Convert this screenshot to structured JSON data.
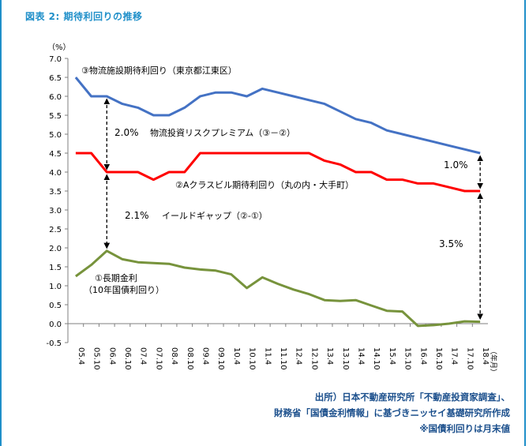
{
  "figure_title": "図表 2: 期待利回りの推移",
  "source_lines": [
    "出所）日本不動産研究所「不動産投資家調査」、",
    "財務省「国債金利情報」に基づきニッセイ基礎研究所作成",
    "※国債利回りは月末値"
  ],
  "colors": {
    "series1": "#4472c4",
    "series2": "#ff0000",
    "series3": "#77933c",
    "frame": "#1f8fc9",
    "source_text": "#1b4f8c"
  },
  "chart_data": {
    "type": "line",
    "y_unit_label": "（%）",
    "x_unit_label": "（年月）",
    "ylim": [
      -0.5,
      7.0
    ],
    "yticks": [
      "7.0",
      "6.5",
      "6.0",
      "5.5",
      "5.0",
      "4.5",
      "4.0",
      "3.5",
      "3.0",
      "2.5",
      "2.0",
      "1.5",
      "1.0",
      "0.5",
      "0.0",
      "-0.5"
    ],
    "grid": false,
    "x_tick_labels": [
      "05.4",
      "05.10",
      "06.4",
      "06.10",
      "07.4",
      "07.10",
      "08.4",
      "08.10",
      "09.4",
      "09.10",
      "10.4",
      "10.10",
      "11.4",
      "11.10",
      "12.4",
      "12.10",
      "13.4",
      "13.10",
      "14.4",
      "14.10",
      "15.4",
      "15.10",
      "16.4",
      "16.10",
      "17.4",
      "17.10",
      "18.4"
    ],
    "series": [
      {
        "name": "③物流施設期待利回り（東京都江東区）",
        "color": "#4472c4",
        "values": [
          6.5,
          6.0,
          6.0,
          5.8,
          5.7,
          5.5,
          5.5,
          5.7,
          6.0,
          6.1,
          6.1,
          6.0,
          6.2,
          6.1,
          6.0,
          5.9,
          5.8,
          5.6,
          5.4,
          5.3,
          5.1,
          5.0,
          4.9,
          4.8,
          4.7,
          4.6,
          4.5
        ]
      },
      {
        "name": "②Aクラスビル期待利回り（丸の内・大手町）",
        "color": "#ff0000",
        "values": [
          4.5,
          4.5,
          4.0,
          4.0,
          4.0,
          3.8,
          4.0,
          4.0,
          4.5,
          4.5,
          4.5,
          4.5,
          4.5,
          4.5,
          4.5,
          4.5,
          4.3,
          4.2,
          4.0,
          4.0,
          3.8,
          3.8,
          3.7,
          3.7,
          3.6,
          3.5,
          3.5
        ]
      },
      {
        "name": "①長期金利（10年国債利回り）",
        "color": "#77933c",
        "values": [
          1.25,
          1.55,
          1.92,
          1.7,
          1.62,
          1.6,
          1.58,
          1.48,
          1.43,
          1.4,
          1.3,
          0.94,
          1.22,
          1.05,
          0.9,
          0.78,
          0.62,
          0.6,
          0.62,
          0.48,
          0.34,
          0.32,
          -0.06,
          -0.04,
          0.0,
          0.06,
          0.05
        ]
      }
    ],
    "annotations": [
      {
        "text": "2.0%",
        "label": "物流投資リスクプレミアム（③－②）"
      },
      {
        "text": "2.1%",
        "label": "イールドギャップ（②-①）"
      },
      {
        "text": "1.0%"
      },
      {
        "text": "3.5%"
      }
    ]
  }
}
